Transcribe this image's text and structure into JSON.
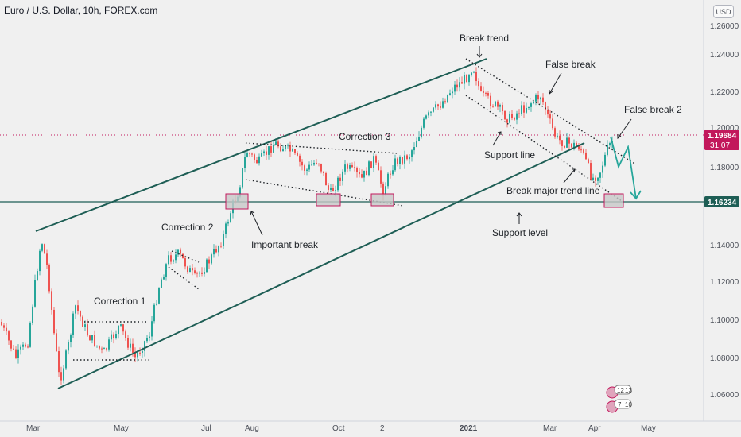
{
  "header": {
    "symbol": "Euro / U.S. Dollar, 10h, FOREX.com"
  },
  "currency_button": "USD",
  "price_axis": {
    "ticks": [
      "1.26000",
      "1.24000",
      "1.22000",
      "1.20000",
      "1.18000",
      "1.16000",
      "1.14000",
      "1.12000",
      "1.10000",
      "1.08000",
      "1.06000"
    ],
    "current_price": "1.19684",
    "countdown": "31:07",
    "support_price": "1.16234",
    "current_color": "#c2185b",
    "support_color": "#1e5e55"
  },
  "time_axis": {
    "labels": [
      "Mar",
      "May",
      "Jul",
      "Aug",
      "Oct",
      "2",
      "2021",
      "Mar",
      "Apr",
      "May"
    ]
  },
  "annotations": {
    "break_trend": "Break trend",
    "false_break": "False break",
    "false_break_2": "False break 2",
    "correction_3": "Correction 3",
    "support_line": "Support line",
    "break_major": "Break major trend line",
    "correction_2": "Correction 2",
    "important_break": "Important break",
    "support_level": "Support level",
    "correction_1": "Correction 1"
  },
  "colors": {
    "trend": "#1e5e55",
    "candle_up": "#26a69a",
    "candle_down": "#ef5350",
    "box_fill": "#c8c8c8",
    "box_stroke": "#c2185b"
  },
  "icon_labels": {
    "a": "12",
    "b": "13",
    "c": "7",
    "d": "10"
  }
}
